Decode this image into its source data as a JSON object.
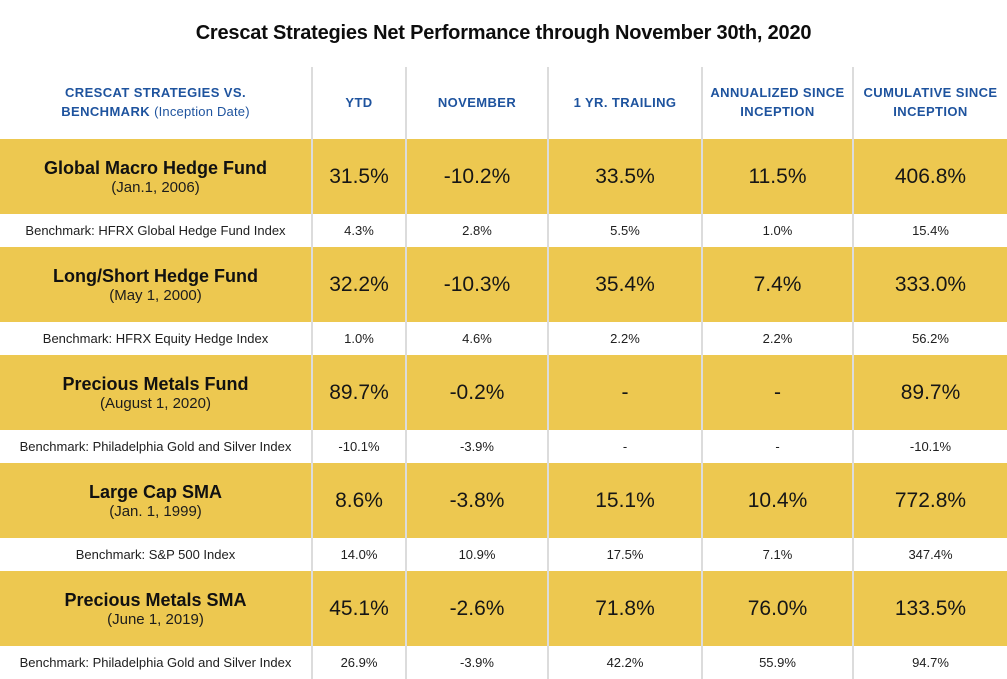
{
  "title": "Crescat Strategies Net Performance through November 30th, 2020",
  "colors": {
    "row_highlight": "#EDC850",
    "header_text": "#1E539E",
    "divider": "#DCDCDC",
    "body_text": "#1A1A1A"
  },
  "table": {
    "header": {
      "col0_main": "CRESCAT STRATEGIES VS. BENCHMARK",
      "col0_sub": "(Inception Date)",
      "cols": [
        "YTD",
        "NOVEMBER",
        "1 YR. TRAILING",
        "ANNUALIZED SINCE INCEPTION",
        "CUMULATIVE SINCE INCEPTION"
      ]
    },
    "rows": [
      {
        "type": "strategy",
        "name": "Global Macro Hedge Fund",
        "inception": "(Jan.1, 2006)",
        "values": [
          "31.5%",
          "-10.2%",
          "33.5%",
          "11.5%",
          "406.8%"
        ]
      },
      {
        "type": "benchmark",
        "name": "Benchmark: HFRX Global Hedge Fund Index",
        "values": [
          "4.3%",
          "2.8%",
          "5.5%",
          "1.0%",
          "15.4%"
        ]
      },
      {
        "type": "strategy",
        "name": "Long/Short Hedge Fund",
        "inception": "(May 1, 2000)",
        "values": [
          "32.2%",
          "-10.3%",
          "35.4%",
          "7.4%",
          "333.0%"
        ]
      },
      {
        "type": "benchmark",
        "name": "Benchmark: HFRX Equity Hedge Index",
        "values": [
          "1.0%",
          "4.6%",
          "2.2%",
          "2.2%",
          "56.2%"
        ]
      },
      {
        "type": "strategy",
        "name": "Precious Metals Fund",
        "inception": "(August 1, 2020)",
        "values": [
          "89.7%",
          "-0.2%",
          "-",
          "-",
          "89.7%"
        ]
      },
      {
        "type": "benchmark",
        "name": "Benchmark: Philadelphia Gold and Silver Index",
        "values": [
          "-10.1%",
          "-3.9%",
          "-",
          "-",
          "-10.1%"
        ]
      },
      {
        "type": "strategy",
        "name": "Large Cap SMA",
        "inception": "(Jan. 1, 1999)",
        "values": [
          "8.6%",
          "-3.8%",
          "15.1%",
          "10.4%",
          "772.8%"
        ]
      },
      {
        "type": "benchmark",
        "name": "Benchmark: S&P 500 Index",
        "values": [
          "14.0%",
          "10.9%",
          "17.5%",
          "7.1%",
          "347.4%"
        ]
      },
      {
        "type": "strategy",
        "name": "Precious Metals SMA",
        "inception": "(June 1, 2019)",
        "values": [
          "45.1%",
          "-2.6%",
          "71.8%",
          "76.0%",
          "133.5%"
        ]
      },
      {
        "type": "benchmark",
        "name": "Benchmark: Philadelphia Gold and Silver Index",
        "values": [
          "26.9%",
          "-3.9%",
          "42.2%",
          "55.9%",
          "94.7%"
        ]
      }
    ]
  },
  "chart_data": {
    "type": "table",
    "title": "Crescat Strategies Net Performance through November 30th, 2020",
    "columns": [
      "CRESCAT STRATEGIES VS. BENCHMARK (Inception Date)",
      "YTD",
      "NOVEMBER",
      "1 YR. TRAILING",
      "ANNUALIZED SINCE INCEPTION",
      "CUMULATIVE SINCE INCEPTION"
    ],
    "rows": [
      [
        "Global Macro Hedge Fund (Jan.1, 2006)",
        "31.5%",
        "-10.2%",
        "33.5%",
        "11.5%",
        "406.8%"
      ],
      [
        "Benchmark: HFRX Global Hedge Fund Index",
        "4.3%",
        "2.8%",
        "5.5%",
        "1.0%",
        "15.4%"
      ],
      [
        "Long/Short Hedge Fund (May 1, 2000)",
        "32.2%",
        "-10.3%",
        "35.4%",
        "7.4%",
        "333.0%"
      ],
      [
        "Benchmark: HFRX Equity Hedge Index",
        "1.0%",
        "4.6%",
        "2.2%",
        "2.2%",
        "56.2%"
      ],
      [
        "Precious Metals Fund (August 1, 2020)",
        "89.7%",
        "-0.2%",
        "-",
        "-",
        "89.7%"
      ],
      [
        "Benchmark: Philadelphia Gold and Silver Index",
        "-10.1%",
        "-3.9%",
        "-",
        "-",
        "-10.1%"
      ],
      [
        "Large Cap SMA (Jan. 1, 1999)",
        "8.6%",
        "-3.8%",
        "15.1%",
        "10.4%",
        "772.8%"
      ],
      [
        "Benchmark: S&P 500 Index",
        "14.0%",
        "10.9%",
        "17.5%",
        "7.1%",
        "347.4%"
      ],
      [
        "Precious Metals SMA (June 1, 2019)",
        "45.1%",
        "-2.6%",
        "71.8%",
        "76.0%",
        "133.5%"
      ],
      [
        "Benchmark: Philadelphia Gold and Silver Index",
        "26.9%",
        "-3.9%",
        "42.2%",
        "55.9%",
        "94.7%"
      ]
    ]
  }
}
